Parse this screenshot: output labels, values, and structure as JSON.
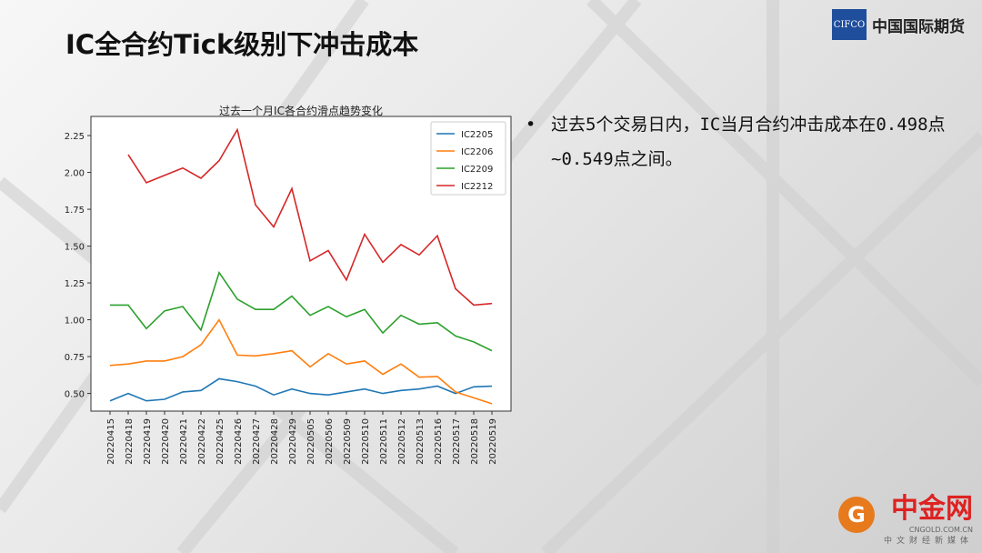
{
  "slide": {
    "title": "IC全合约Tick级别下冲击成本",
    "bullet": "过去5个交易日内，IC当月合约冲击成本在0.498点~0.549点之间。",
    "bullet_dot": "•"
  },
  "logo": {
    "mark": "CIFCO",
    "name": "中国国际期货"
  },
  "watermark": {
    "brand": "中金网",
    "url": "CNGOLD.COM.CN",
    "slogan": "中文财经新媒体",
    "icon": "G"
  },
  "chart_data": {
    "type": "line",
    "title": "过去一个月IC各合约滑点趋势变化",
    "xlabel": "",
    "ylabel": "",
    "ylim": [
      0.38,
      2.38
    ],
    "yticks": [
      "0.50",
      "0.75",
      "1.00",
      "1.25",
      "1.50",
      "1.75",
      "2.00",
      "2.25"
    ],
    "legend": "top-right",
    "grid": false,
    "x": [
      "20220415",
      "20220418",
      "20220419",
      "20220420",
      "20220421",
      "20220422",
      "20220425",
      "20220426",
      "20220427",
      "20220428",
      "20220429",
      "20220505",
      "20220506",
      "20220509",
      "20220510",
      "20220511",
      "20220512",
      "20220513",
      "20220516",
      "20220517",
      "20220518",
      "20220519"
    ],
    "series": [
      {
        "name": "IC2205",
        "color": "#1f77b4",
        "values": [
          0.45,
          0.5,
          0.45,
          0.46,
          0.51,
          0.52,
          0.6,
          0.58,
          0.55,
          0.49,
          0.53,
          0.5,
          0.49,
          0.51,
          0.53,
          0.5,
          0.52,
          0.53,
          0.55,
          0.5,
          0.545,
          0.549
        ]
      },
      {
        "name": "IC2206",
        "color": "#ff7f0e",
        "values": [
          0.69,
          0.7,
          0.72,
          0.72,
          0.75,
          0.83,
          1.0,
          0.76,
          0.755,
          0.77,
          0.79,
          0.68,
          0.77,
          0.7,
          0.72,
          0.63,
          0.7,
          0.61,
          0.615,
          0.51,
          0.47,
          0.43
        ]
      },
      {
        "name": "IC2209",
        "color": "#2ca02c",
        "values": [
          1.1,
          1.1,
          0.94,
          1.06,
          1.09,
          0.93,
          1.32,
          1.14,
          1.07,
          1.07,
          1.16,
          1.03,
          1.09,
          1.02,
          1.07,
          0.91,
          1.03,
          0.97,
          0.98,
          0.89,
          0.85,
          0.79
        ]
      },
      {
        "name": "IC2212",
        "color": "#d62728",
        "values": [
          null,
          2.12,
          1.93,
          1.98,
          2.03,
          1.96,
          2.08,
          2.29,
          1.78,
          1.63,
          1.89,
          1.4,
          1.47,
          1.27,
          1.58,
          1.39,
          1.51,
          1.44,
          1.57,
          1.21,
          1.1,
          1.11
        ]
      }
    ]
  }
}
